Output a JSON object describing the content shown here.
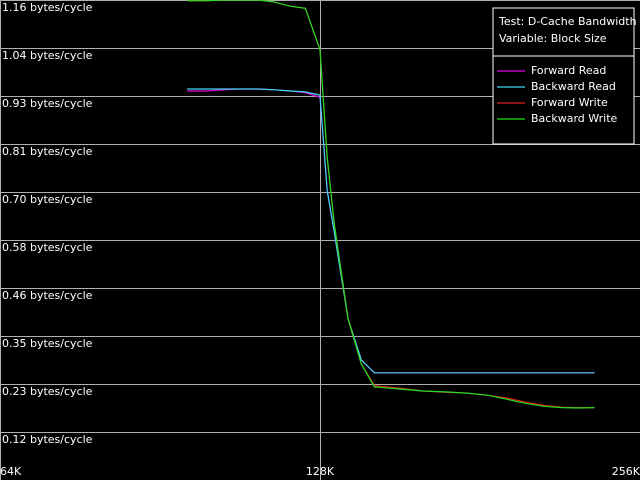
{
  "chart_data": {
    "type": "line",
    "title": "Test: D-Cache Bandwidth",
    "subtitle": "Variable: Block Size",
    "x": [
      96,
      100,
      104,
      108,
      112,
      116,
      120,
      124,
      128,
      130,
      132,
      136,
      140,
      144,
      152,
      160,
      168,
      176,
      184,
      192,
      200,
      208,
      216,
      224,
      232
    ],
    "xlim": [
      64,
      256
    ],
    "xscale": "log",
    "xticks": [
      {
        "value": 64,
        "label": "64K"
      },
      {
        "value": 128,
        "label": "128K"
      },
      {
        "value": 256,
        "label": "256K"
      }
    ],
    "ylim": [
      0,
      1.16
    ],
    "yticks": [
      {
        "value": 0.116,
        "label": "0.12 bytes/cycle"
      },
      {
        "value": 0.232,
        "label": "0.23 bytes/cycle"
      },
      {
        "value": 0.348,
        "label": "0.35 bytes/cycle"
      },
      {
        "value": 0.464,
        "label": "0.46 bytes/cycle"
      },
      {
        "value": 0.58,
        "label": "0.58 bytes/cycle"
      },
      {
        "value": 0.696,
        "label": "0.70 bytes/cycle"
      },
      {
        "value": 0.812,
        "label": "0.81 bytes/cycle"
      },
      {
        "value": 0.928,
        "label": "0.93 bytes/cycle"
      },
      {
        "value": 1.044,
        "label": "1.04 bytes/cycle"
      },
      {
        "value": 1.16,
        "label": "1.16 bytes/cycle"
      }
    ],
    "grid": true,
    "legend": "upper right",
    "series": [
      {
        "name": "Forward Read",
        "color": "#e000e0",
        "values": [
          0.94,
          0.94,
          0.943,
          0.945,
          0.945,
          0.943,
          0.94,
          0.936,
          0.925,
          0.7,
          0.6,
          0.39,
          0.29,
          0.259,
          0.259,
          0.259,
          0.259,
          0.259,
          0.259,
          0.259,
          0.259,
          0.259,
          0.259,
          0.259,
          0.259
        ]
      },
      {
        "name": "Backward Read",
        "color": "#40d8f0",
        "values": [
          0.945,
          0.945,
          0.945,
          0.945,
          0.945,
          0.943,
          0.94,
          0.938,
          0.93,
          0.7,
          0.6,
          0.39,
          0.29,
          0.259,
          0.259,
          0.259,
          0.259,
          0.259,
          0.259,
          0.259,
          0.259,
          0.259,
          0.259,
          0.259,
          0.259
        ]
      },
      {
        "name": "Forward Write",
        "color": "#e02020",
        "values": [
          1.158,
          1.158,
          1.16,
          1.16,
          1.16,
          1.155,
          1.145,
          1.14,
          1.04,
          0.78,
          0.62,
          0.39,
          0.28,
          0.228,
          0.222,
          0.215,
          0.212,
          0.21,
          0.205,
          0.198,
          0.188,
          0.18,
          0.176,
          0.175,
          0.175
        ]
      },
      {
        "name": "Backward Write",
        "color": "#20e020",
        "values": [
          1.158,
          1.158,
          1.16,
          1.16,
          1.16,
          1.155,
          1.145,
          1.14,
          1.04,
          0.78,
          0.62,
          0.39,
          0.28,
          0.225,
          0.22,
          0.215,
          0.213,
          0.21,
          0.205,
          0.195,
          0.185,
          0.178,
          0.175,
          0.174,
          0.175
        ]
      }
    ]
  }
}
